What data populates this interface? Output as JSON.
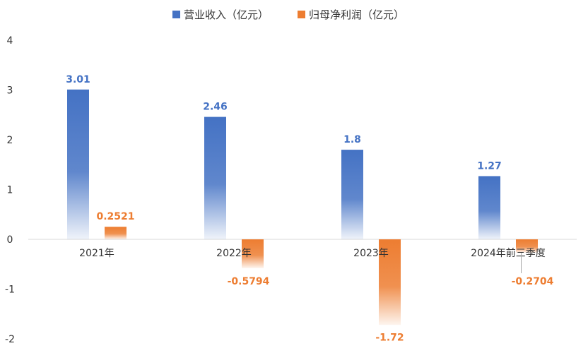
{
  "chart_data": {
    "type": "bar",
    "categories": [
      "2021年",
      "2022年",
      "2023年",
      "2024年前三季度"
    ],
    "series": [
      {
        "name": "营业收入（亿元）",
        "values": [
          3.01,
          2.46,
          1.8,
          1.27
        ],
        "labels": [
          "3.01",
          "2.46",
          "1.8",
          "1.27"
        ],
        "color": "#4472C4"
      },
      {
        "name": "归母净利润（亿元）",
        "values": [
          0.2521,
          -0.5794,
          -1.72,
          -0.2704
        ],
        "labels": [
          "0.2521",
          "-0.5794",
          "-1.72",
          "-0.2704"
        ],
        "color": "#ED7D31"
      }
    ],
    "yticks": [
      "4",
      "3",
      "2",
      "1",
      "0",
      "-1",
      "-2"
    ],
    "ylim": [
      -2,
      4
    ],
    "grid": false,
    "legend_position": "top"
  }
}
